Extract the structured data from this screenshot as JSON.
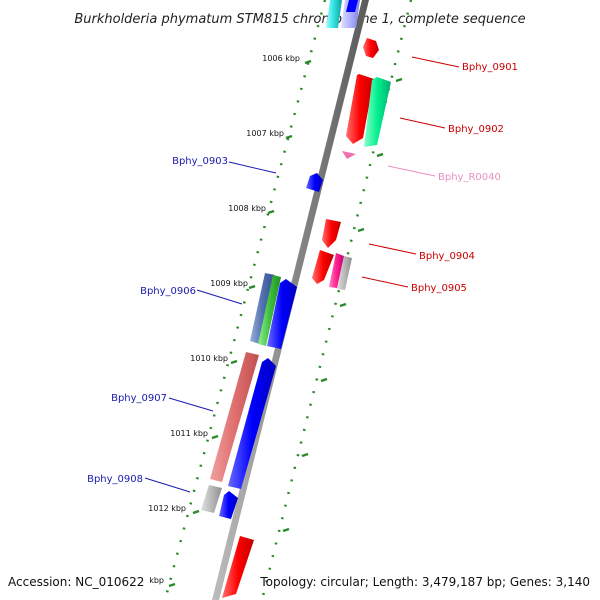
{
  "title": "Burkholderia phymatum STM815 chromosome 1, complete sequence",
  "footer": {
    "accession": "Accession: NC_010622",
    "summary": "Topology: circular; Length: 3,479,187 bp; Genes: 3,140"
  },
  "scale_labels": [
    "1006 kbp",
    "1007 kbp",
    "1008 kbp",
    "1009 kbp",
    "1010 kbp",
    "1011 kbp",
    "1012 kbp",
    "kbp"
  ],
  "genes_left": [
    "Bphy_0903",
    "Bphy_0906",
    "Bphy_0907",
    "Bphy_0908"
  ],
  "genes_right": [
    "Bphy_0901",
    "Bphy_0902",
    "Bphy_R0040",
    "Bphy_0904",
    "Bphy_0905"
  ],
  "colors": {
    "left_label": "#1a1ab0",
    "right_label": "#cc0000",
    "rna_label": "#e890c0",
    "strand_forward": "#0000ff",
    "strand_reverse": "#ff0000",
    "backbone": "#888888",
    "ruler": "#2a8a2a"
  }
}
